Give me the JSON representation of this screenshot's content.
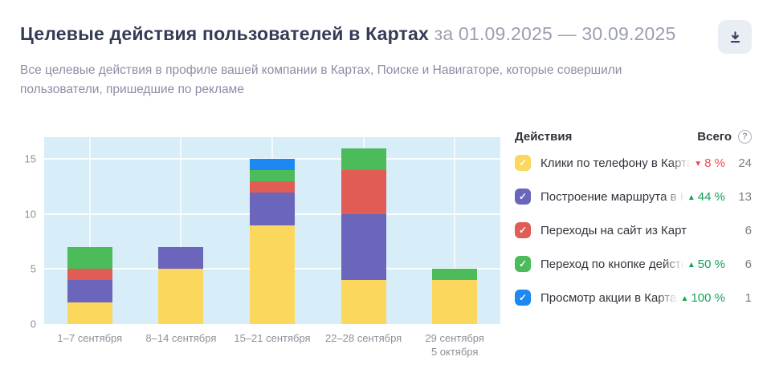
{
  "header": {
    "title": "Целевые действия пользователей в Картах",
    "period": "за 01.09.2025 — 30.09.2025",
    "subtitle": "Все целевые действия в профиле вашей компании в Картах, Поиске и Навигаторе, которые совершили пользователи, пришедшие по рекламе"
  },
  "toolbar": {
    "download_icon": "download-icon"
  },
  "legend": {
    "header_left": "Действия",
    "header_right": "Всего",
    "help_icon": "question-circle-icon"
  },
  "icons": {
    "up": "▲",
    "down": "▼",
    "check": "✓",
    "question": "?"
  },
  "colors": {
    "title": "#343B56",
    "period": "#9AA0B0",
    "subtitle": "#8B8EA5",
    "plot_background": "#D7EDF8",
    "axis_label": "#8F8F98",
    "change_up": "#12A357",
    "change_down": "#F4465C",
    "total_text": "#7C7C86",
    "download_button_bg": "#E9EDF4",
    "download_icon": "#3A4160"
  },
  "chart_data": {
    "type": "bar",
    "stacked": true,
    "grid": true,
    "legend_position": "right",
    "categories": [
      "1–7 сентября",
      "8–14 сентября",
      "15–21 сентября",
      "22–28 сентября",
      "29 сентября\n5 октября"
    ],
    "yticks": [
      0,
      5,
      10,
      15
    ],
    "ylim": [
      0,
      17
    ],
    "xlabel": "",
    "ylabel": "",
    "series": [
      {
        "name": "Клики по телефону в Картах",
        "color": "#FBD75E",
        "values": [
          2,
          5,
          9,
          4,
          4
        ],
        "total": 24,
        "change": {
          "direction": "down",
          "value": "8 %"
        }
      },
      {
        "name": "Построение маршрута в Картах",
        "color": "#6B66BC",
        "values": [
          2,
          2,
          3,
          6,
          0
        ],
        "total": 13,
        "change": {
          "direction": "up",
          "value": "44 %"
        }
      },
      {
        "name": "Переходы на сайт из Карт",
        "color": "#E05C55",
        "values": [
          1,
          0,
          1,
          4,
          0
        ],
        "total": 6,
        "change": null
      },
      {
        "name": "Переход по кнопке действия из Карт",
        "color": "#4CBB5A",
        "values": [
          2,
          0,
          1,
          2,
          1
        ],
        "total": 6,
        "change": {
          "direction": "up",
          "value": "50 %"
        }
      },
      {
        "name": "Просмотр акции в Картах",
        "color": "#1E88F2",
        "values": [
          0,
          0,
          1,
          0,
          0
        ],
        "total": 1,
        "change": {
          "direction": "up",
          "value": "100 %"
        }
      }
    ]
  }
}
